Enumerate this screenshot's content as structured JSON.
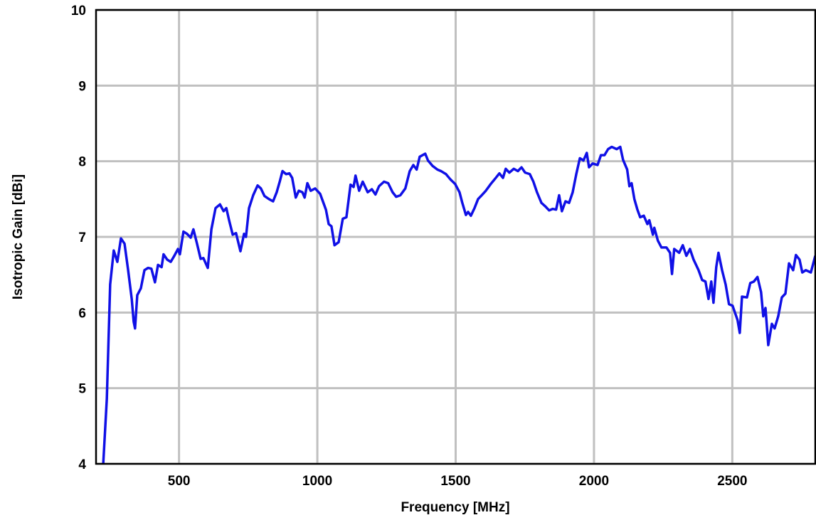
{
  "chart_data": {
    "type": "line",
    "xlabel": "Frequency [MHz]",
    "ylabel": "Isotropic Gain [dBi]",
    "xlim": [
      200,
      2800
    ],
    "ylim": [
      4,
      10
    ],
    "xticks": [
      500,
      1000,
      1500,
      2000,
      2500
    ],
    "yticks": [
      4,
      5,
      6,
      7,
      8,
      9,
      10
    ],
    "grid": true,
    "color": "#1010e6",
    "x": [
      226,
      239,
      251,
      264,
      277,
      290,
      303,
      316,
      329,
      336,
      341,
      349,
      362,
      375,
      388,
      400,
      413,
      424,
      437,
      444,
      457,
      470,
      483,
      496,
      503,
      516,
      529,
      542,
      552,
      565,
      578,
      588,
      604,
      617,
      632,
      648,
      661,
      671,
      681,
      694,
      706,
      722,
      735,
      742,
      753,
      768,
      784,
      796,
      809,
      825,
      840,
      853,
      864,
      874,
      887,
      899,
      909,
      922,
      933,
      946,
      954,
      964,
      976,
      992,
      1010,
      1031,
      1041,
      1051,
      1062,
      1077,
      1092,
      1105,
      1120,
      1131,
      1138,
      1151,
      1164,
      1182,
      1197,
      1210,
      1223,
      1241,
      1256,
      1272,
      1285,
      1300,
      1318,
      1334,
      1347,
      1359,
      1370,
      1390,
      1400,
      1416,
      1434,
      1447,
      1465,
      1481,
      1498,
      1514,
      1524,
      1537,
      1545,
      1555,
      1568,
      1581,
      1594,
      1609,
      1627,
      1645,
      1658,
      1671,
      1681,
      1694,
      1710,
      1725,
      1738,
      1751,
      1768,
      1781,
      1794,
      1810,
      1825,
      1838,
      1851,
      1863,
      1874,
      1884,
      1897,
      1910,
      1923,
      1936,
      1949,
      1962,
      1974,
      1982,
      1995,
      2013,
      2025,
      2038,
      2051,
      2064,
      2082,
      2095,
      2105,
      2120,
      2128,
      2136,
      2146,
      2157,
      2167,
      2180,
      2193,
      2200,
      2213,
      2218,
      2231,
      2244,
      2262,
      2275,
      2282,
      2290,
      2308,
      2321,
      2334,
      2347,
      2360,
      2378,
      2391,
      2403,
      2414,
      2424,
      2432,
      2442,
      2450,
      2463,
      2476,
      2488,
      2501,
      2519,
      2527,
      2535,
      2553,
      2565,
      2578,
      2591,
      2604,
      2612,
      2620,
      2630,
      2643,
      2653,
      2666,
      2679,
      2692,
      2705,
      2720,
      2730,
      2743,
      2753,
      2766,
      2784,
      2800
    ],
    "values": [
      4.0,
      4.86,
      6.37,
      6.82,
      6.67,
      6.98,
      6.91,
      6.56,
      6.18,
      5.88,
      5.79,
      6.23,
      6.32,
      6.56,
      6.59,
      6.58,
      6.4,
      6.63,
      6.6,
      6.77,
      6.7,
      6.67,
      6.75,
      6.84,
      6.77,
      7.07,
      7.04,
      6.99,
      7.1,
      6.91,
      6.71,
      6.72,
      6.59,
      7.1,
      7.38,
      7.43,
      7.34,
      7.38,
      7.22,
      7.03,
      7.05,
      6.81,
      7.04,
      7.0,
      7.38,
      7.55,
      7.68,
      7.64,
      7.54,
      7.5,
      7.47,
      7.59,
      7.73,
      7.87,
      7.83,
      7.84,
      7.78,
      7.52,
      7.61,
      7.59,
      7.52,
      7.71,
      7.61,
      7.64,
      7.57,
      7.36,
      7.17,
      7.14,
      6.89,
      6.93,
      7.24,
      7.26,
      7.69,
      7.66,
      7.81,
      7.61,
      7.73,
      7.59,
      7.63,
      7.56,
      7.67,
      7.73,
      7.71,
      7.59,
      7.53,
      7.55,
      7.64,
      7.87,
      7.95,
      7.89,
      8.06,
      8.1,
      8.01,
      7.94,
      7.89,
      7.87,
      7.83,
      7.76,
      7.7,
      7.59,
      7.45,
      7.29,
      7.33,
      7.28,
      7.38,
      7.5,
      7.55,
      7.61,
      7.7,
      7.78,
      7.84,
      7.78,
      7.9,
      7.85,
      7.9,
      7.87,
      7.92,
      7.85,
      7.83,
      7.73,
      7.59,
      7.45,
      7.4,
      7.35,
      7.37,
      7.36,
      7.55,
      7.34,
      7.47,
      7.45,
      7.59,
      7.83,
      8.04,
      8.01,
      8.11,
      7.92,
      7.97,
      7.95,
      8.08,
      8.08,
      8.16,
      8.19,
      8.16,
      8.19,
      8.02,
      7.89,
      7.67,
      7.71,
      7.5,
      7.36,
      7.26,
      7.28,
      7.17,
      7.22,
      7.03,
      7.12,
      6.95,
      6.86,
      6.86,
      6.79,
      6.51,
      6.84,
      6.79,
      6.89,
      6.75,
      6.84,
      6.7,
      6.56,
      6.43,
      6.41,
      6.18,
      6.41,
      6.13,
      6.6,
      6.79,
      6.56,
      6.37,
      6.11,
      6.09,
      5.9,
      5.73,
      6.21,
      6.2,
      6.39,
      6.41,
      6.47,
      6.27,
      5.95,
      6.06,
      5.57,
      5.85,
      5.79,
      5.95,
      6.2,
      6.25,
      6.65,
      6.56,
      6.76,
      6.7,
      6.53,
      6.56,
      6.53,
      6.75
    ]
  }
}
